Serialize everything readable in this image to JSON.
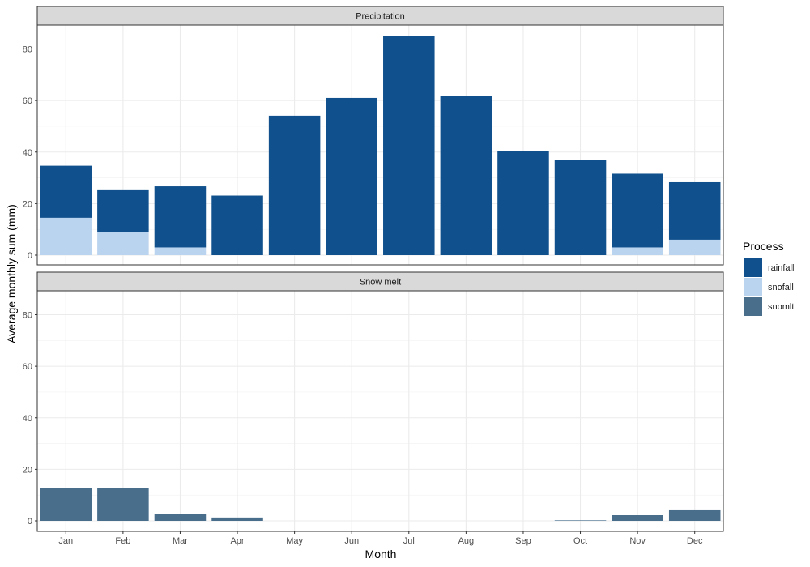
{
  "chart_data": {
    "type": "bar",
    "stacked": true,
    "categories": [
      "Jan",
      "Feb",
      "Mar",
      "Apr",
      "May",
      "Jun",
      "Jul",
      "Aug",
      "Sep",
      "Oct",
      "Nov",
      "Dec"
    ],
    "ylabel": "Average monthly sum (mm)",
    "xlabel": "Month",
    "ylim": [
      0,
      89
    ],
    "yticks": [
      0,
      20,
      40,
      60,
      80
    ],
    "grid": true,
    "legend": {
      "title": "Process",
      "position": "right",
      "entries": [
        {
          "label": "rainfall",
          "color": "#10508C"
        },
        {
          "label": "snofall",
          "color": "#BAD3EE"
        },
        {
          "label": "snomlt",
          "color": "#486E8C"
        }
      ]
    },
    "panels": [
      {
        "title": "Precipitation",
        "series": [
          {
            "name": "snofall",
            "color": "#BAD3EE",
            "values": [
              14.5,
              9,
              3,
              0,
              0,
              0,
              0,
              0,
              0,
              0,
              3,
              6
            ]
          },
          {
            "name": "rainfall",
            "color": "#10508C",
            "values": [
              20.2,
              16.5,
              23.7,
              23.1,
              54.1,
              61.0,
              85.0,
              61.8,
              40.4,
              37.0,
              28.6,
              22.3
            ]
          }
        ]
      },
      {
        "title": "Snow melt",
        "series": [
          {
            "name": "snomlt",
            "color": "#486E8C",
            "values": [
              12.8,
              12.7,
              2.6,
              1.3,
              0,
              0,
              0,
              0,
              0,
              0.2,
              2.2,
              4.1
            ]
          }
        ]
      }
    ]
  }
}
